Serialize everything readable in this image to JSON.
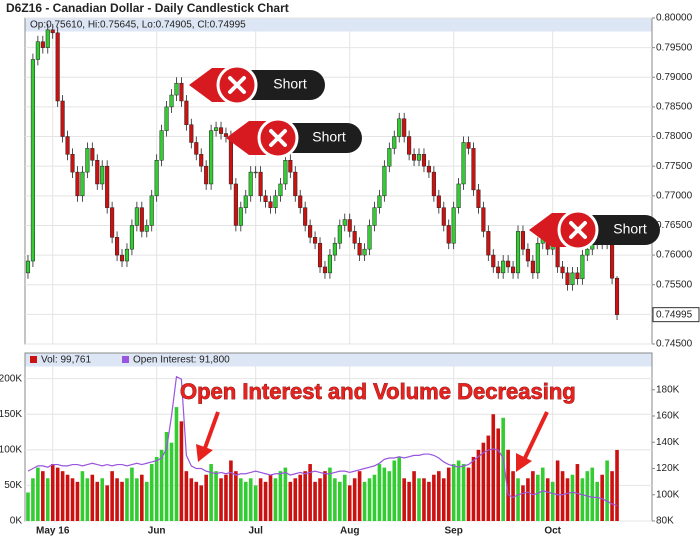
{
  "chart_data": [
    {
      "type": "candlestick",
      "title": "D6Z16 - Canadian Dollar - Daily Candlestick Chart",
      "subtitle": "Op:0.75610, Hi:0.75645, Lo:0.74905, Cl:0.74995",
      "up_color": "#33cc33",
      "down_color": "#cc1111",
      "annotations": [
        "Short",
        "Short",
        "Short"
      ],
      "ylim": [
        0.745,
        0.8
      ],
      "yticks": [
        {
          "value": 0.745,
          "label": "0.74500"
        },
        {
          "value": 0.75,
          "label": "0.75000"
        },
        {
          "value": 0.755,
          "label": "0.75500"
        },
        {
          "value": 0.76,
          "label": "0.76000"
        },
        {
          "value": 0.765,
          "label": "0.76500"
        },
        {
          "value": 0.77,
          "label": "0.77000"
        },
        {
          "value": 0.775,
          "label": "0.77500"
        },
        {
          "value": 0.78,
          "label": "0.78000"
        },
        {
          "value": 0.785,
          "label": "0.78500"
        },
        {
          "value": 0.79,
          "label": "0.79000"
        },
        {
          "value": 0.795,
          "label": "0.79500"
        },
        {
          "value": 0.8,
          "label": "0.80000"
        }
      ],
      "open": [
        0.757,
        0.759,
        0.793,
        0.796,
        0.795,
        0.798,
        0.7975,
        0.786,
        0.78,
        0.777,
        0.774,
        0.77,
        0.774,
        0.778,
        0.776,
        0.772,
        0.775,
        0.768,
        0.763,
        0.76,
        0.759,
        0.761,
        0.765,
        0.768,
        0.764,
        0.765,
        0.77,
        0.776,
        0.781,
        0.785,
        0.787,
        0.789,
        0.786,
        0.782,
        0.779,
        0.777,
        0.775,
        0.772,
        0.781,
        0.7815,
        0.7805,
        0.78,
        0.772,
        0.765,
        0.768,
        0.77,
        0.774,
        0.774,
        0.77,
        0.769,
        0.768,
        0.77,
        0.772,
        0.776,
        0.774,
        0.77,
        0.768,
        0.765,
        0.763,
        0.762,
        0.758,
        0.757,
        0.76,
        0.762,
        0.765,
        0.766,
        0.764,
        0.762,
        0.76,
        0.761,
        0.765,
        0.768,
        0.77,
        0.775,
        0.778,
        0.78,
        0.783,
        0.78,
        0.777,
        0.776,
        0.777,
        0.775,
        0.774,
        0.77,
        0.768,
        0.765,
        0.762,
        0.768,
        0.772,
        0.779,
        0.778,
        0.771,
        0.768,
        0.764,
        0.76,
        0.758,
        0.757,
        0.759,
        0.758,
        0.757,
        0.764,
        0.761,
        0.759,
        0.757,
        0.762,
        0.764,
        0.761,
        0.762,
        0.758,
        0.757,
        0.755,
        0.757,
        0.756,
        0.76,
        0.761,
        0.762,
        0.763,
        0.762,
        0.763,
        0.7561
      ],
      "high": [
        0.76,
        0.794,
        0.797,
        0.797,
        0.799,
        0.799,
        0.7985,
        0.787,
        0.781,
        0.778,
        0.775,
        0.775,
        0.779,
        0.779,
        0.777,
        0.776,
        0.776,
        0.769,
        0.764,
        0.761,
        0.762,
        0.766,
        0.769,
        0.769,
        0.766,
        0.771,
        0.777,
        0.782,
        0.786,
        0.788,
        0.79,
        0.79,
        0.787,
        0.783,
        0.78,
        0.778,
        0.776,
        0.782,
        0.7825,
        0.7825,
        0.7815,
        0.781,
        0.773,
        0.769,
        0.771,
        0.775,
        0.775,
        0.775,
        0.771,
        0.77,
        0.771,
        0.773,
        0.777,
        0.777,
        0.775,
        0.771,
        0.769,
        0.766,
        0.764,
        0.763,
        0.759,
        0.761,
        0.763,
        0.766,
        0.767,
        0.767,
        0.765,
        0.763,
        0.762,
        0.766,
        0.769,
        0.771,
        0.776,
        0.779,
        0.781,
        0.784,
        0.784,
        0.781,
        0.778,
        0.778,
        0.778,
        0.776,
        0.775,
        0.771,
        0.769,
        0.766,
        0.769,
        0.773,
        0.78,
        0.78,
        0.779,
        0.772,
        0.769,
        0.765,
        0.761,
        0.759,
        0.76,
        0.76,
        0.759,
        0.765,
        0.765,
        0.762,
        0.76,
        0.763,
        0.765,
        0.765,
        0.763,
        0.763,
        0.759,
        0.758,
        0.758,
        0.758,
        0.761,
        0.762,
        0.763,
        0.764,
        0.764,
        0.764,
        0.764,
        0.75645
      ],
      "low": [
        0.756,
        0.758,
        0.792,
        0.794,
        0.794,
        0.7965,
        0.785,
        0.779,
        0.776,
        0.773,
        0.769,
        0.769,
        0.773,
        0.775,
        0.771,
        0.771,
        0.767,
        0.762,
        0.759,
        0.758,
        0.758,
        0.76,
        0.764,
        0.763,
        0.763,
        0.764,
        0.769,
        0.775,
        0.78,
        0.784,
        0.786,
        0.785,
        0.781,
        0.778,
        0.776,
        0.774,
        0.771,
        0.771,
        0.78,
        0.7795,
        0.779,
        0.771,
        0.764,
        0.764,
        0.767,
        0.769,
        0.773,
        0.769,
        0.768,
        0.767,
        0.767,
        0.769,
        0.771,
        0.773,
        0.769,
        0.767,
        0.764,
        0.762,
        0.761,
        0.757,
        0.756,
        0.756,
        0.759,
        0.761,
        0.764,
        0.763,
        0.761,
        0.759,
        0.759,
        0.76,
        0.764,
        0.767,
        0.769,
        0.774,
        0.777,
        0.779,
        0.779,
        0.776,
        0.775,
        0.775,
        0.774,
        0.773,
        0.769,
        0.767,
        0.764,
        0.761,
        0.761,
        0.767,
        0.771,
        0.777,
        0.77,
        0.767,
        0.763,
        0.759,
        0.757,
        0.756,
        0.756,
        0.757,
        0.756,
        0.756,
        0.76,
        0.758,
        0.756,
        0.756,
        0.761,
        0.76,
        0.76,
        0.757,
        0.756,
        0.754,
        0.754,
        0.755,
        0.755,
        0.759,
        0.76,
        0.761,
        0.761,
        0.761,
        0.7551,
        0.74905
      ],
      "close": [
        0.759,
        0.793,
        0.796,
        0.795,
        0.798,
        0.7975,
        0.786,
        0.78,
        0.777,
        0.774,
        0.77,
        0.774,
        0.778,
        0.776,
        0.772,
        0.775,
        0.768,
        0.763,
        0.76,
        0.759,
        0.761,
        0.765,
        0.768,
        0.764,
        0.765,
        0.77,
        0.776,
        0.781,
        0.785,
        0.787,
        0.789,
        0.786,
        0.782,
        0.779,
        0.777,
        0.775,
        0.772,
        0.781,
        0.7815,
        0.7805,
        0.78,
        0.772,
        0.765,
        0.768,
        0.77,
        0.774,
        0.774,
        0.77,
        0.769,
        0.768,
        0.77,
        0.772,
        0.776,
        0.774,
        0.77,
        0.768,
        0.765,
        0.763,
        0.762,
        0.758,
        0.757,
        0.76,
        0.762,
        0.765,
        0.766,
        0.764,
        0.762,
        0.76,
        0.761,
        0.765,
        0.768,
        0.77,
        0.775,
        0.778,
        0.78,
        0.783,
        0.78,
        0.777,
        0.776,
        0.777,
        0.775,
        0.774,
        0.77,
        0.768,
        0.765,
        0.762,
        0.768,
        0.772,
        0.779,
        0.778,
        0.771,
        0.768,
        0.764,
        0.76,
        0.758,
        0.757,
        0.759,
        0.758,
        0.757,
        0.764,
        0.761,
        0.759,
        0.757,
        0.762,
        0.764,
        0.761,
        0.762,
        0.758,
        0.757,
        0.755,
        0.757,
        0.756,
        0.76,
        0.761,
        0.762,
        0.763,
        0.762,
        0.763,
        0.7561,
        0.74995
      ]
    },
    {
      "type": "bar",
      "annotation": "Open Interest and Volume Decreasing",
      "categories": [
        null,
        null,
        null,
        null,
        null,
        "May 16",
        null,
        null,
        null,
        null,
        null,
        null,
        null,
        null,
        null,
        null,
        null,
        null,
        null,
        null,
        null,
        null,
        null,
        null,
        null,
        null,
        "Jun",
        null,
        null,
        null,
        null,
        null,
        null,
        null,
        null,
        null,
        null,
        null,
        null,
        null,
        null,
        null,
        null,
        null,
        null,
        null,
        "Jul",
        null,
        null,
        null,
        null,
        null,
        null,
        null,
        null,
        null,
        null,
        null,
        null,
        null,
        null,
        null,
        null,
        null,
        null,
        "Aug",
        null,
        null,
        null,
        null,
        null,
        null,
        null,
        null,
        null,
        null,
        null,
        null,
        null,
        null,
        null,
        null,
        null,
        null,
        null,
        null,
        "Sep",
        null,
        null,
        null,
        null,
        null,
        null,
        null,
        null,
        null,
        null,
        null,
        null,
        null,
        null,
        null,
        null,
        null,
        null,
        null,
        "Oct",
        null,
        null,
        null,
        null,
        null,
        null,
        null,
        null,
        null,
        null,
        null,
        null,
        null
      ],
      "ylim": [
        0,
        236000
      ],
      "yticks": [
        {
          "value": 0,
          "label": "0K"
        },
        {
          "value": 50000,
          "label": "50K"
        },
        {
          "value": 100000,
          "label": "100K"
        },
        {
          "value": 150000,
          "label": "150K"
        },
        {
          "value": 200000,
          "label": "200K"
        }
      ],
      "y2lim": [
        80000,
        208000
      ],
      "y2ticks": [
        {
          "value": 80000,
          "label": "80K"
        },
        {
          "value": 100000,
          "label": "100K"
        },
        {
          "value": 120000,
          "label": "120K"
        },
        {
          "value": 140000,
          "label": "140K"
        },
        {
          "value": 160000,
          "label": "160K"
        },
        {
          "value": 180000,
          "label": "180K"
        }
      ],
      "series": [
        {
          "name": "Vol: 99,761",
          "color": "#cc1111",
          "values": [
            40000,
            60000,
            75000,
            70000,
            60000,
            80000,
            75000,
            70000,
            65000,
            60000,
            55000,
            70000,
            60000,
            65000,
            55000,
            60000,
            50000,
            70000,
            60000,
            55000,
            60000,
            75000,
            60000,
            65000,
            55000,
            80000,
            90000,
            100000,
            125000,
            110000,
            160000,
            140000,
            70000,
            60000,
            55000,
            50000,
            65000,
            80000,
            70000,
            60000,
            65000,
            85000,
            70000,
            60000,
            55000,
            60000,
            50000,
            60000,
            55000,
            65000,
            60000,
            70000,
            75000,
            55000,
            60000,
            65000,
            70000,
            80000,
            55000,
            60000,
            70000,
            75000,
            60000,
            55000,
            65000,
            50000,
            60000,
            70000,
            55000,
            60000,
            65000,
            80000,
            75000,
            70000,
            85000,
            90000,
            60000,
            55000,
            70000,
            60000,
            60000,
            55000,
            65000,
            70000,
            60000,
            75000,
            80000,
            85000,
            80000,
            75000,
            90000,
            100000,
            110000,
            120000,
            150000,
            130000,
            145000,
            100000,
            70000,
            60000,
            50000,
            60000,
            70000,
            65000,
            75000,
            60000,
            55000,
            85000,
            70000,
            60000,
            65000,
            80000,
            60000,
            70000,
            75000,
            55000,
            65000,
            85000,
            70000,
            99761
          ]
        },
        {
          "name": "Open Interest: 91,800",
          "color": "#9955dd",
          "axis": "y2",
          "values": [
            118000,
            120000,
            122000,
            122000,
            121000,
            123000,
            123000,
            122000,
            122000,
            123000,
            123000,
            122000,
            123000,
            124000,
            123000,
            122000,
            123000,
            122000,
            123000,
            123000,
            122000,
            123000,
            124000,
            123000,
            124000,
            125000,
            126000,
            128000,
            135000,
            160000,
            190000,
            188000,
            130000,
            122000,
            120000,
            120000,
            118000,
            117000,
            116000,
            117000,
            116000,
            117000,
            115000,
            116000,
            116000,
            117000,
            118000,
            117000,
            116000,
            115000,
            116000,
            116000,
            117000,
            115000,
            116000,
            117000,
            116000,
            117000,
            118000,
            117000,
            116000,
            116000,
            117000,
            118000,
            118000,
            117000,
            118000,
            119000,
            120000,
            121000,
            122000,
            124000,
            127000,
            128000,
            128000,
            129000,
            128000,
            129000,
            130000,
            130000,
            131000,
            131000,
            130000,
            128000,
            125000,
            123000,
            122000,
            121000,
            122000,
            123000,
            126000,
            129000,
            132000,
            134000,
            135000,
            134000,
            128000,
            100000,
            98000,
            100000,
            101000,
            102000,
            100000,
            101000,
            103000,
            102000,
            101000,
            100000,
            100000,
            101000,
            102000,
            101000,
            100000,
            99000,
            98000,
            98000,
            97000,
            95000,
            93000,
            91800
          ]
        }
      ]
    }
  ]
}
